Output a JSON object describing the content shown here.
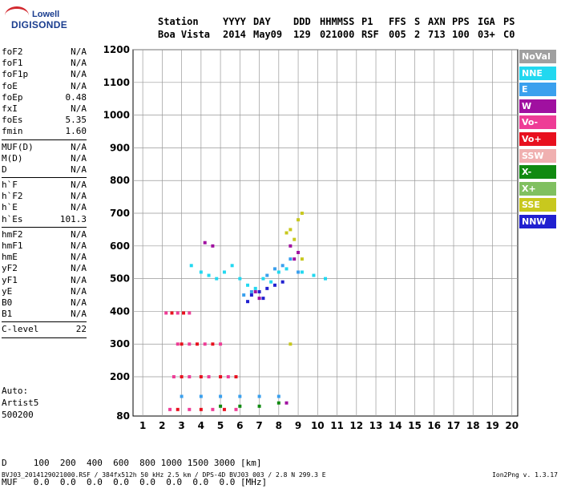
{
  "logo": {
    "top": "Lowell",
    "bottom": "DIGISONDE"
  },
  "header": {
    "labels": [
      "Station",
      "YYYY",
      "DAY",
      "DDD",
      "HHMMSS",
      "P1",
      "FFS",
      "S",
      "AXN",
      "PPS",
      "IGA",
      "PS"
    ],
    "values": [
      "Boa Vista",
      "2014",
      "May09",
      "129",
      "021000",
      "RSF",
      "005",
      "2",
      "713",
      "100",
      "03+",
      "C0"
    ]
  },
  "params": [
    [
      [
        "foF2",
        "N/A"
      ],
      [
        "foF1",
        "N/A"
      ],
      [
        "foF1p",
        "N/A"
      ],
      [
        "foE",
        "N/A"
      ],
      [
        "foEp",
        "0.48"
      ],
      [
        "fxI",
        "N/A"
      ],
      [
        "foEs",
        "5.35"
      ],
      [
        "fmin",
        "1.60"
      ]
    ],
    [
      [
        "MUF(D)",
        "N/A"
      ],
      [
        "M(D)",
        "N/A"
      ],
      [
        "D",
        "N/A"
      ]
    ],
    [
      [
        "h`F",
        "N/A"
      ],
      [
        "h`F2",
        "N/A"
      ],
      [
        "h`E",
        "N/A"
      ],
      [
        "h`Es",
        "101.3"
      ]
    ],
    [
      [
        "hmF2",
        "N/A"
      ],
      [
        "hmF1",
        "N/A"
      ],
      [
        "hmE",
        "N/A"
      ],
      [
        "yF2",
        "N/A"
      ],
      [
        "yF1",
        "N/A"
      ],
      [
        "yE",
        "N/A"
      ],
      [
        "B0",
        "N/A"
      ],
      [
        "B1",
        "N/A"
      ]
    ],
    [
      [
        "C-level",
        "22"
      ]
    ]
  ],
  "auto": [
    "Auto:",
    "Artist5",
    "500200"
  ],
  "d_table": {
    "d_label": "D",
    "d_values": [
      "100",
      "200",
      "400",
      "600",
      "800",
      "1000",
      "1500",
      "3000"
    ],
    "d_unit": "[km]",
    "muf_label": "MUF",
    "muf_values": [
      "0.0",
      "0.0",
      "0.0",
      "0.0",
      "0.0",
      "0.0",
      "0.0",
      "0.0"
    ],
    "muf_unit": "[MHz]"
  },
  "footer": {
    "left": "BVJ03_2014129021000.RSF / 384fx512h 50 kHz 2.5 km / DPS-4D BVJ03 003 / 2.8 N 299.3 E",
    "right": "Ion2Png v. 1.3.17"
  },
  "legend": [
    {
      "label": "NoVal",
      "color": "#a0a0a0"
    },
    {
      "label": "NNE",
      "color": "#22d8f0"
    },
    {
      "label": "E",
      "color": "#3aa0ee"
    },
    {
      "label": "W",
      "color": "#a010a0"
    },
    {
      "label": "Vo-",
      "color": "#ee3c96"
    },
    {
      "label": "Vo+",
      "color": "#e8101e"
    },
    {
      "label": "SSW",
      "color": "#f0b0b0"
    },
    {
      "label": "X-",
      "color": "#108a10"
    },
    {
      "label": "X+",
      "color": "#80c060"
    },
    {
      "label": "SSE",
      "color": "#c8c81e"
    },
    {
      "label": "NNW",
      "color": "#2020d0"
    }
  ],
  "chart_data": {
    "type": "scatter",
    "xlabel": "",
    "ylabel": "",
    "xlim": [
      0.5,
      20.3
    ],
    "ylim": [
      80,
      1200
    ],
    "x_ticks": [
      1,
      2,
      3,
      4,
      5,
      6,
      7,
      8,
      9,
      10,
      11,
      12,
      13,
      14,
      15,
      16,
      17,
      18,
      19,
      20
    ],
    "y_ticks": [
      80,
      200,
      300,
      400,
      500,
      600,
      700,
      800,
      900,
      1000,
      1100,
      1200
    ],
    "grid": true,
    "series": [
      {
        "name": "NNE",
        "color": "#22d8f0",
        "points": [
          [
            5.2,
            520
          ],
          [
            5.6,
            540
          ],
          [
            6.0,
            500
          ],
          [
            6.4,
            480
          ],
          [
            6.8,
            470
          ],
          [
            7.2,
            500
          ],
          [
            7.6,
            490
          ],
          [
            8.0,
            520
          ],
          [
            8.4,
            530
          ],
          [
            4.8,
            500
          ],
          [
            4.4,
            510
          ],
          [
            4.0,
            520
          ],
          [
            3.5,
            540
          ],
          [
            9.2,
            520
          ],
          [
            9.8,
            510
          ],
          [
            10.4,
            500
          ]
        ]
      },
      {
        "name": "E",
        "color": "#3aa0ee",
        "points": [
          [
            7.4,
            510
          ],
          [
            7.8,
            530
          ],
          [
            8.2,
            540
          ],
          [
            8.6,
            560
          ],
          [
            9.0,
            520
          ],
          [
            6.2,
            450
          ],
          [
            6.6,
            460
          ],
          [
            3.0,
            140
          ],
          [
            4.0,
            140
          ],
          [
            5.0,
            140
          ],
          [
            6.0,
            140
          ],
          [
            7.0,
            140
          ],
          [
            8.0,
            140
          ]
        ]
      },
      {
        "name": "W",
        "color": "#a010a0",
        "points": [
          [
            8.6,
            600
          ],
          [
            8.8,
            560
          ],
          [
            9.0,
            580
          ],
          [
            6.8,
            460
          ],
          [
            7.0,
            440
          ],
          [
            4.6,
            600
          ],
          [
            4.2,
            610
          ],
          [
            8.4,
            120
          ]
        ]
      },
      {
        "name": "Vo-",
        "color": "#ee3c96",
        "points": [
          [
            2.8,
            300
          ],
          [
            3.4,
            300
          ],
          [
            4.2,
            300
          ],
          [
            5.0,
            300
          ],
          [
            2.6,
            200
          ],
          [
            3.4,
            200
          ],
          [
            4.4,
            200
          ],
          [
            5.4,
            200
          ],
          [
            2.2,
            395
          ],
          [
            2.8,
            395
          ],
          [
            3.4,
            395
          ],
          [
            2.4,
            100
          ],
          [
            3.4,
            100
          ],
          [
            4.6,
            100
          ],
          [
            5.8,
            100
          ]
        ]
      },
      {
        "name": "Vo+",
        "color": "#e8101e",
        "points": [
          [
            3.0,
            300
          ],
          [
            3.8,
            300
          ],
          [
            4.6,
            300
          ],
          [
            3.0,
            200
          ],
          [
            4.0,
            200
          ],
          [
            5.0,
            200
          ],
          [
            5.8,
            200
          ],
          [
            2.5,
            395
          ],
          [
            3.1,
            395
          ],
          [
            2.8,
            100
          ],
          [
            4.0,
            100
          ],
          [
            5.2,
            100
          ]
        ]
      },
      {
        "name": "X-",
        "color": "#108a10",
        "points": [
          [
            5.0,
            110
          ],
          [
            6.0,
            110
          ],
          [
            7.0,
            110
          ],
          [
            8.0,
            120
          ]
        ]
      },
      {
        "name": "SSE",
        "color": "#c8c81e",
        "points": [
          [
            8.6,
            650
          ],
          [
            9.0,
            680
          ],
          [
            9.2,
            700
          ],
          [
            8.8,
            620
          ],
          [
            8.4,
            640
          ],
          [
            8.6,
            300
          ],
          [
            9.2,
            560
          ]
        ]
      },
      {
        "name": "NNW",
        "color": "#2020d0",
        "points": [
          [
            6.6,
            450
          ],
          [
            7.0,
            460
          ],
          [
            7.4,
            470
          ],
          [
            7.8,
            480
          ],
          [
            8.2,
            490
          ],
          [
            7.2,
            440
          ],
          [
            6.4,
            430
          ]
        ]
      }
    ]
  }
}
